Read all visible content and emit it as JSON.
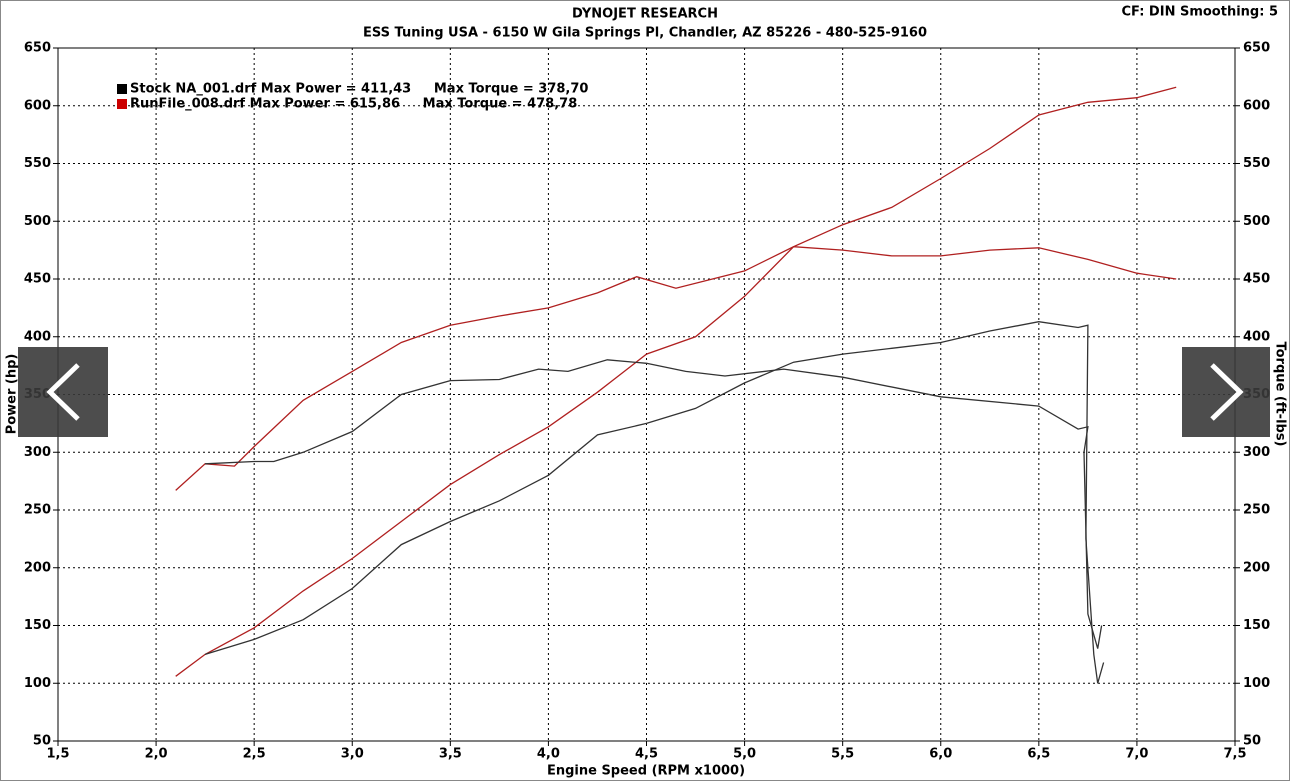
{
  "chart_data": {
    "type": "line",
    "title": "DYNOJET RESEARCH",
    "subtitle": "ESS Tuning USA - 6150 W Gila Springs Pl, Chandler, AZ 85226 - 480-525-9160",
    "corner_text": "CF: DIN  Smoothing: 5",
    "x_label": "Engine Speed (RPM x1000)",
    "y_label": "Power (hp)",
    "y2_label": "Torque (ft-lbs)",
    "xlim": [
      1.5,
      7.5
    ],
    "xticks": [
      {
        "value": 1.5,
        "label": "1,5"
      },
      {
        "value": 2,
        "label": "2,0"
      },
      {
        "value": 2.5,
        "label": "2,5"
      },
      {
        "value": 3,
        "label": "3,0"
      },
      {
        "value": 3.5,
        "label": "3,5"
      },
      {
        "value": 4,
        "label": "4,0"
      },
      {
        "value": 4.5,
        "label": "4,5"
      },
      {
        "value": 5,
        "label": "5,0"
      },
      {
        "value": 5.5,
        "label": "5,5"
      },
      {
        "value": 6,
        "label": "6,0"
      },
      {
        "value": 6.5,
        "label": "6,5"
      },
      {
        "value": 7,
        "label": "7,0"
      },
      {
        "value": 7.5,
        "label": "7,5"
      }
    ],
    "ylim": [
      50,
      650
    ],
    "yticks": [
      50,
      100,
      150,
      200,
      250,
      300,
      350,
      400,
      450,
      500,
      550,
      600,
      650
    ],
    "y2lim": [
      50,
      650
    ],
    "y2ticks": [
      50,
      100,
      150,
      200,
      250,
      300,
      350,
      400,
      450,
      500,
      550,
      600,
      650
    ],
    "grid": true,
    "legend": [
      {
        "text": "Stock NA_001.drf Max Power = 411,43     Max Torque = 378,70",
        "color": "#000000"
      },
      {
        "text": "RunFile_008.drf Max Power = 615,86     Max Torque = 478,78",
        "color": "#cc0000"
      }
    ],
    "series": [
      {
        "color": "#b02020",
        "x": [
          2.1,
          2.25,
          2.5,
          2.75,
          3.0,
          3.25,
          3.5,
          3.75,
          4.0,
          4.25,
          4.5,
          4.75,
          5.0,
          5.25,
          5.5,
          5.75,
          6.0,
          6.25,
          6.5,
          6.75,
          7.0,
          7.2
        ],
        "values": [
          106,
          125,
          148,
          180,
          208,
          240,
          272,
          298,
          322,
          352,
          385,
          400,
          435,
          478,
          497,
          512,
          537,
          563,
          592,
          603,
          607,
          616
        ]
      },
      {
        "color": "#b02020",
        "axis": "y2",
        "x": [
          2.1,
          2.25,
          2.4,
          2.5,
          2.75,
          3.0,
          3.25,
          3.5,
          3.75,
          4.0,
          4.25,
          4.45,
          4.65,
          5.0,
          5.25,
          5.5,
          5.75,
          6.0,
          6.25,
          6.5,
          6.75,
          7.0,
          7.2
        ],
        "values": [
          267,
          290,
          288,
          305,
          345,
          370,
          395,
          410,
          418,
          425,
          438,
          452,
          442,
          457,
          478,
          475,
          470,
          470,
          475,
          477,
          467,
          455,
          450
        ]
      },
      {
        "color": "#333333",
        "x": [
          2.25,
          2.5,
          2.75,
          3.0,
          3.25,
          3.5,
          3.75,
          4.0,
          4.25,
          4.5,
          4.75,
          5.0,
          5.25,
          5.5,
          5.75,
          6.0,
          6.25,
          6.5,
          6.7,
          6.75,
          6.74,
          6.78,
          6.8,
          6.83
        ],
        "values": [
          125,
          138,
          155,
          182,
          220,
          240,
          258,
          280,
          315,
          325,
          338,
          360,
          378,
          385,
          390,
          395,
          405,
          413,
          408,
          410,
          225,
          125,
          100,
          118
        ]
      },
      {
        "color": "#333333",
        "axis": "y2",
        "x": [
          2.25,
          2.5,
          2.6,
          2.75,
          3.0,
          3.25,
          3.5,
          3.75,
          3.95,
          4.1,
          4.3,
          4.5,
          4.7,
          4.9,
          5.2,
          5.5,
          6.0,
          6.5,
          6.7,
          6.75,
          6.73,
          6.75,
          6.8,
          6.82
        ],
        "values": [
          290,
          292,
          292,
          300,
          318,
          350,
          362,
          363,
          372,
          370,
          380,
          377,
          370,
          366,
          372,
          365,
          348,
          340,
          320,
          322,
          300,
          160,
          130,
          150
        ]
      }
    ]
  }
}
